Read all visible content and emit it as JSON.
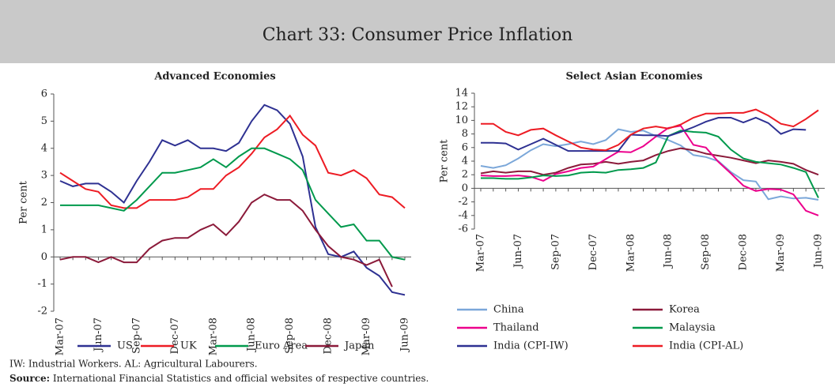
{
  "title": "Chart 33: Consumer Price Inflation",
  "chart_data": [
    {
      "type": "line",
      "title": "Advanced Economies",
      "ylabel": "Per cent",
      "categories": [
        "Mar-07",
        null,
        null,
        "Jun-07",
        null,
        null,
        "Sep-07",
        null,
        null,
        "Dec-07",
        null,
        null,
        "Mar-08",
        null,
        null,
        "Jun-08",
        null,
        null,
        "Sep-08",
        null,
        null,
        "Dec-08",
        null,
        null,
        "Mar-09",
        null,
        null,
        "Jun-09"
      ],
      "ylim": [
        -2,
        6
      ],
      "yticks": [
        -2,
        -1,
        0,
        1,
        2,
        3,
        4,
        5,
        6
      ],
      "series": [
        {
          "name": "US",
          "color": "#2e3192",
          "values": [
            2.8,
            2.6,
            2.7,
            2.7,
            2.4,
            2.0,
            2.8,
            3.5,
            4.3,
            4.1,
            4.3,
            4.0,
            4.0,
            3.9,
            4.2,
            5.0,
            5.6,
            5.4,
            4.9,
            3.7,
            1.1,
            0.1,
            0.0,
            0.2,
            -0.4,
            -0.7,
            -1.3,
            -1.4
          ]
        },
        {
          "name": "UK",
          "color": "#ed1c24",
          "values": [
            3.1,
            2.8,
            2.5,
            2.4,
            1.9,
            1.8,
            1.8,
            2.1,
            2.1,
            2.1,
            2.2,
            2.5,
            2.5,
            3.0,
            3.3,
            3.8,
            4.4,
            4.7,
            5.2,
            4.5,
            4.1,
            3.1,
            3.0,
            3.2,
            2.9,
            2.3,
            2.2,
            1.8
          ]
        },
        {
          "name": "Euro Area",
          "color": "#00994c",
          "values": [
            1.9,
            1.9,
            1.9,
            1.9,
            1.8,
            1.7,
            2.1,
            2.6,
            3.1,
            3.1,
            3.2,
            3.3,
            3.6,
            3.3,
            3.7,
            4.0,
            4.0,
            3.8,
            3.6,
            3.2,
            2.1,
            1.6,
            1.1,
            1.2,
            0.6,
            0.6,
            0.0,
            -0.1
          ]
        },
        {
          "name": "Japan",
          "color": "#8b1a3a",
          "values": [
            -0.1,
            0.0,
            0.0,
            -0.2,
            0.0,
            -0.2,
            -0.2,
            0.3,
            0.6,
            0.7,
            0.7,
            1.0,
            1.2,
            0.8,
            1.3,
            2.0,
            2.3,
            2.1,
            2.1,
            1.7,
            1.0,
            0.4,
            0.0,
            -0.1,
            -0.3,
            -0.1,
            -1.1,
            null
          ]
        }
      ]
    },
    {
      "type": "line",
      "title": "Select Asian Economies",
      "ylabel": "Per cent",
      "categories": [
        "Mar-07",
        null,
        null,
        "Jun-07",
        null,
        null,
        "Sep-07",
        null,
        null,
        "Dec-07",
        null,
        null,
        "Mar-08",
        null,
        null,
        "Jun-08",
        null,
        null,
        "Sep-08",
        null,
        null,
        "Dec-08",
        null,
        null,
        "Mar-09",
        null,
        null,
        "Jun-09"
      ],
      "ylim": [
        -6,
        14
      ],
      "yticks": [
        -6,
        -4,
        -2,
        0,
        2,
        4,
        6,
        8,
        10,
        12,
        14
      ],
      "series": [
        {
          "name": "China",
          "color": "#7ba7d9",
          "values": [
            3.3,
            3.0,
            3.4,
            4.4,
            5.6,
            6.5,
            6.2,
            6.5,
            6.9,
            6.5,
            7.1,
            8.7,
            8.3,
            8.5,
            7.7,
            7.1,
            6.3,
            4.9,
            4.6,
            4.0,
            2.4,
            1.2,
            1.0,
            -1.6,
            -1.2,
            -1.5,
            -1.4,
            -1.7
          ]
        },
        {
          "name": "Korea",
          "color": "#8b1a3a",
          "values": [
            2.2,
            2.5,
            2.3,
            2.5,
            2.5,
            2.0,
            2.3,
            3.0,
            3.5,
            3.6,
            3.9,
            3.6,
            3.9,
            4.1,
            4.9,
            5.5,
            5.9,
            5.6,
            5.1,
            4.8,
            4.5,
            4.1,
            3.7,
            4.1,
            3.9,
            3.6,
            2.7,
            2.0
          ]
        },
        {
          "name": "Thailand",
          "color": "#ec008c",
          "values": [
            1.9,
            1.8,
            1.8,
            1.9,
            1.7,
            1.1,
            2.1,
            2.5,
            3.0,
            3.2,
            4.3,
            5.4,
            5.3,
            6.2,
            7.6,
            8.9,
            9.2,
            6.4,
            6.0,
            3.9,
            2.2,
            0.4,
            -0.4,
            -0.1,
            -0.2,
            -0.9,
            -3.3,
            -4.0
          ]
        },
        {
          "name": "Malaysia",
          "color": "#00994c",
          "values": [
            1.5,
            1.5,
            1.4,
            1.4,
            1.6,
            1.9,
            1.8,
            1.9,
            2.3,
            2.4,
            2.3,
            2.7,
            2.8,
            3.0,
            3.8,
            7.7,
            8.5,
            8.3,
            8.2,
            7.6,
            5.7,
            4.4,
            3.9,
            3.7,
            3.5,
            3.0,
            2.4,
            -1.4
          ]
        },
        {
          "name": "India (CPI-IW)",
          "color": "#2e3192",
          "values": [
            6.7,
            6.7,
            6.6,
            5.7,
            6.5,
            7.3,
            6.4,
            5.5,
            5.5,
            5.5,
            5.5,
            5.5,
            7.9,
            7.8,
            7.8,
            7.7,
            8.3,
            9.0,
            9.8,
            10.4,
            10.4,
            9.7,
            10.4,
            9.6,
            8.0,
            8.7,
            8.6,
            null
          ]
        },
        {
          "name": "India (CPI-AL)",
          "color": "#ed1c24",
          "values": [
            9.5,
            9.5,
            8.3,
            7.8,
            8.6,
            8.8,
            7.8,
            6.9,
            6.0,
            5.7,
            5.6,
            6.4,
            7.9,
            8.8,
            9.1,
            8.8,
            9.4,
            10.4,
            11.0,
            11.0,
            11.1,
            11.1,
            11.6,
            10.7,
            9.5,
            9.1,
            10.2,
            11.5
          ]
        }
      ]
    }
  ],
  "notes": {
    "footnote": "IW: Industrial Workers.   AL: Agricultural Labourers.",
    "source_label": "Source:",
    "source_text": "International Financial Statistics and official websites of respective countries."
  }
}
